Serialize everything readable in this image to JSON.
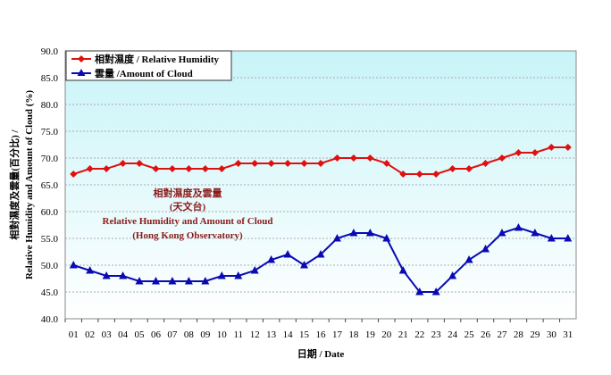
{
  "chart_data": {
    "type": "line",
    "title": "",
    "xlabel": "日期 / Date",
    "ylabel_line1": "相對濕度及雲量(百分比) /",
    "ylabel_line2": "Relative Humidity and Amount of Cloud (%)",
    "ylim": [
      40,
      90
    ],
    "yticks": [
      "40.0",
      "45.0",
      "50.0",
      "55.0",
      "60.0",
      "65.0",
      "70.0",
      "75.0",
      "80.0",
      "85.0",
      "90.0"
    ],
    "categories": [
      "01",
      "02",
      "03",
      "04",
      "05",
      "06",
      "07",
      "08",
      "09",
      "10",
      "11",
      "12",
      "13",
      "14",
      "15",
      "16",
      "17",
      "18",
      "19",
      "20",
      "21",
      "22",
      "23",
      "24",
      "25",
      "26",
      "27",
      "28",
      "29",
      "30",
      "31"
    ],
    "grid": true,
    "legend_position": "top-left",
    "annotation": {
      "line1": "相對濕度及雲量",
      "line2": "(天文台)",
      "line3": "Relative Humidity and Amount of Cloud",
      "line4": "(Hong Kong Observatory)"
    },
    "series": [
      {
        "name": "相對濕度 / Relative Humidity",
        "color": "#e01010",
        "marker": "diamond",
        "values": [
          67,
          68,
          68,
          69,
          69,
          68,
          68,
          68,
          68,
          68,
          69,
          69,
          69,
          69,
          69,
          69,
          70,
          70,
          70,
          69,
          67,
          67,
          67,
          68,
          68,
          69,
          70,
          71,
          71,
          72,
          72
        ]
      },
      {
        "name": "雲量 /Amount of Cloud",
        "color": "#0a0ab4",
        "marker": "triangle",
        "values": [
          50,
          49,
          48,
          48,
          47,
          47,
          47,
          47,
          47,
          48,
          48,
          49,
          51,
          52,
          50,
          52,
          55,
          56,
          56,
          55,
          49,
          45,
          45,
          48,
          51,
          53,
          56,
          57,
          56,
          55,
          55
        ]
      }
    ]
  }
}
